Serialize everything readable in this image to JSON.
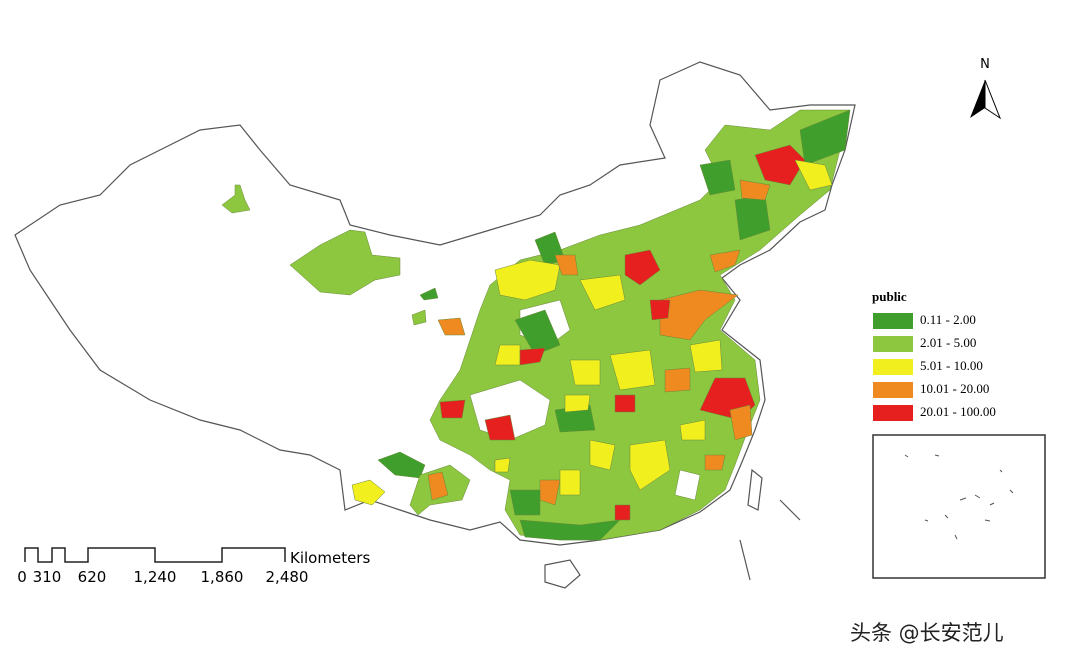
{
  "north_label": "N",
  "legend": {
    "title": "public",
    "items": [
      {
        "label": "0.11 - 2.00",
        "color": "#3f9e2c"
      },
      {
        "label": "2.01 - 5.00",
        "color": "#8dc63f"
      },
      {
        "label": "5.01 - 10.00",
        "color": "#f2ef1f"
      },
      {
        "label": "10.01 - 20.00",
        "color": "#ee8a1f"
      },
      {
        "label": "20.01 - 100.00",
        "color": "#e5201e"
      }
    ]
  },
  "scale_bar": {
    "unit": "Kilometers",
    "labels": [
      "0",
      "310",
      "620",
      "1,240",
      "1,860",
      "2,480"
    ]
  },
  "watermark": "头条 @长安范儿"
}
